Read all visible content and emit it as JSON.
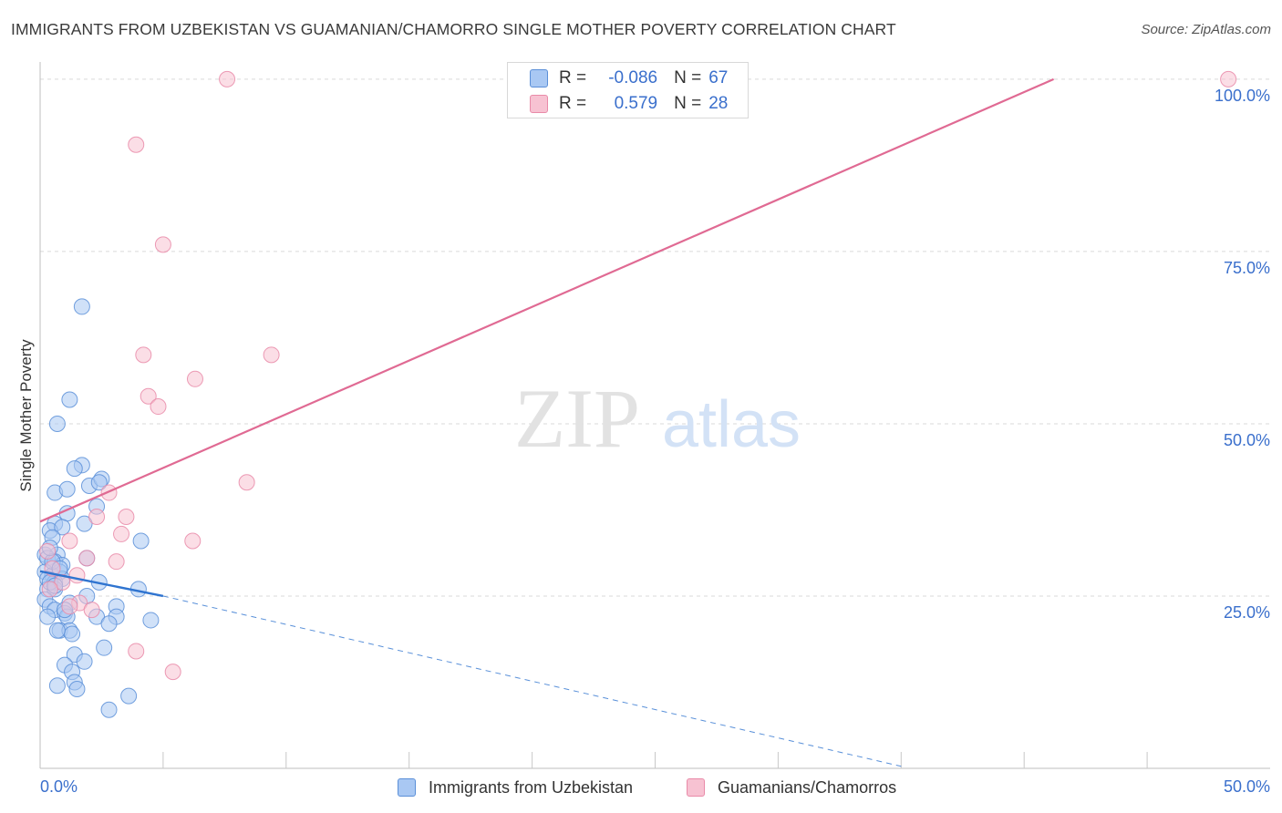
{
  "title": "IMMIGRANTS FROM UZBEKISTAN VS GUAMANIAN/CHAMORRO SINGLE MOTHER POVERTY CORRELATION CHART",
  "source": "Source: ZipAtlas.com",
  "watermark": {
    "zip": "ZIP",
    "atlas": "atlas"
  },
  "colors": {
    "blue_fill": "#a9c8f3",
    "blue_stroke": "#5b8fd8",
    "blue_line": "#2f74d0",
    "pink_fill": "#f7c2d2",
    "pink_stroke": "#e98aa8",
    "pink_line": "#e06a93",
    "tick_label": "#3a6fcc",
    "grid": "#d9d9d9"
  },
  "stats": [
    {
      "r_label": "R =",
      "r_value": "-0.086",
      "n_label": "N =",
      "n_value": "67",
      "color": "blue"
    },
    {
      "r_label": "R =",
      "r_value": "0.579",
      "n_label": "N =",
      "n_value": "28",
      "color": "pink"
    }
  ],
  "chart_data": {
    "type": "scatter",
    "title": "IMMIGRANTS FROM UZBEKISTAN VS GUAMANIAN/CHAMORRO SINGLE MOTHER POVERTY CORRELATION CHART",
    "xlabel": "",
    "ylabel": "Single Mother Poverty",
    "xlim": [
      0,
      50
    ],
    "ylim": [
      0,
      102.5
    ],
    "x_tick_labels": [
      {
        "value": 0,
        "label": "0.0%"
      },
      {
        "value": 50,
        "label": "50.0%"
      }
    ],
    "x_minor_ticks": [
      5,
      10,
      15,
      20,
      25,
      30,
      35,
      40,
      45
    ],
    "y_ticks": [
      {
        "value": 25,
        "label": "25.0%"
      },
      {
        "value": 50,
        "label": "50.0%"
      },
      {
        "value": 75,
        "label": "75.0%"
      },
      {
        "value": 100,
        "label": "100.0%"
      }
    ],
    "grid": true,
    "legend_position": "bottom-center",
    "series": [
      {
        "name": "Immigrants from Uzbekistan",
        "color": "blue",
        "points": [
          [
            1.7,
            67.0
          ],
          [
            0.7,
            50.0
          ],
          [
            1.2,
            53.5
          ],
          [
            1.7,
            44.0
          ],
          [
            1.4,
            43.5
          ],
          [
            0.6,
            40.0
          ],
          [
            1.1,
            40.5
          ],
          [
            2.0,
            41.0
          ],
          [
            2.5,
            42.0
          ],
          [
            2.4,
            41.5
          ],
          [
            2.3,
            38.0
          ],
          [
            1.1,
            37.0
          ],
          [
            0.6,
            35.5
          ],
          [
            0.4,
            34.5
          ],
          [
            0.9,
            35.0
          ],
          [
            1.8,
            35.5
          ],
          [
            0.5,
            33.5
          ],
          [
            4.1,
            33.0
          ],
          [
            0.2,
            31.0
          ],
          [
            0.7,
            31.0
          ],
          [
            0.3,
            30.5
          ],
          [
            0.6,
            30.0
          ],
          [
            0.9,
            29.5
          ],
          [
            1.9,
            30.5
          ],
          [
            0.2,
            28.5
          ],
          [
            0.5,
            28.0
          ],
          [
            0.8,
            28.5
          ],
          [
            0.3,
            27.5
          ],
          [
            0.6,
            27.0
          ],
          [
            0.9,
            27.5
          ],
          [
            2.4,
            27.0
          ],
          [
            0.3,
            26.0
          ],
          [
            0.6,
            26.0
          ],
          [
            1.9,
            25.0
          ],
          [
            4.0,
            26.0
          ],
          [
            0.2,
            24.5
          ],
          [
            0.4,
            23.5
          ],
          [
            1.2,
            24.0
          ],
          [
            0.6,
            23.0
          ],
          [
            1.0,
            22.5
          ],
          [
            0.3,
            22.0
          ],
          [
            1.1,
            22.0
          ],
          [
            2.3,
            22.0
          ],
          [
            3.1,
            23.5
          ],
          [
            3.1,
            22.0
          ],
          [
            2.8,
            21.0
          ],
          [
            4.5,
            21.5
          ],
          [
            0.8,
            20.0
          ],
          [
            1.2,
            20.0
          ],
          [
            1.3,
            19.5
          ],
          [
            2.6,
            17.5
          ],
          [
            1.4,
            16.5
          ],
          [
            1.8,
            15.5
          ],
          [
            1.0,
            15.0
          ],
          [
            1.3,
            14.0
          ],
          [
            0.7,
            12.0
          ],
          [
            1.4,
            12.5
          ],
          [
            1.5,
            11.5
          ],
          [
            3.6,
            10.5
          ],
          [
            2.8,
            8.5
          ],
          [
            0.5,
            30.0
          ],
          [
            0.8,
            29.0
          ],
          [
            0.4,
            27.0
          ],
          [
            1.0,
            23.0
          ],
          [
            0.7,
            20.0
          ],
          [
            0.6,
            26.5
          ],
          [
            0.4,
            32.0
          ]
        ],
        "trend": {
          "x": [
            0,
            5
          ],
          "y": [
            28.6,
            25.0
          ]
        },
        "trend_extension": {
          "x": [
            5,
            35
          ],
          "y": [
            25.0,
            0.3
          ]
        }
      },
      {
        "name": "Guamanians/Chamorros",
        "color": "pink",
        "points": [
          [
            7.6,
            100.0
          ],
          [
            48.3,
            100.0
          ],
          [
            3.9,
            90.5
          ],
          [
            5.0,
            76.0
          ],
          [
            4.2,
            60.0
          ],
          [
            9.4,
            60.0
          ],
          [
            6.3,
            56.5
          ],
          [
            4.4,
            54.0
          ],
          [
            4.8,
            52.5
          ],
          [
            8.4,
            41.5
          ],
          [
            2.8,
            40.0
          ],
          [
            2.3,
            36.5
          ],
          [
            3.5,
            36.5
          ],
          [
            3.3,
            34.0
          ],
          [
            1.2,
            33.0
          ],
          [
            6.2,
            33.0
          ],
          [
            1.9,
            30.5
          ],
          [
            3.1,
            30.0
          ],
          [
            0.3,
            31.5
          ],
          [
            0.5,
            29.0
          ],
          [
            1.5,
            28.0
          ],
          [
            0.9,
            27.0
          ],
          [
            0.4,
            26.0
          ],
          [
            1.6,
            24.0
          ],
          [
            1.2,
            23.5
          ],
          [
            2.1,
            23.0
          ],
          [
            3.9,
            17.0
          ],
          [
            5.4,
            14.0
          ]
        ],
        "trend": {
          "x": [
            0,
            41.2
          ],
          "y": [
            35.8,
            100.0
          ]
        }
      }
    ]
  }
}
